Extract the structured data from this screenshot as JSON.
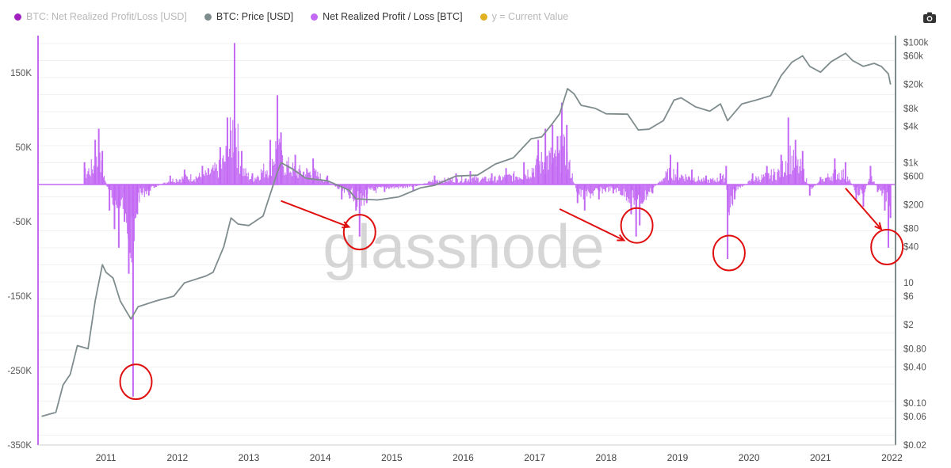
{
  "legend": [
    {
      "label": "BTC: Net Realized Profit/Loss [USD]",
      "color": "#a020c0",
      "state": "dim"
    },
    {
      "label": "BTC: Price [USD]",
      "color": "#7f8c8d",
      "state": "active"
    },
    {
      "label": "Net Realized Profit / Loss [BTC]",
      "color": "#c368f4",
      "state": "active"
    },
    {
      "label": "y = Current Value",
      "color": "#e0b020",
      "state": "dim"
    }
  ],
  "toolbar": {
    "camera_icon": "camera-icon"
  },
  "watermark": "glassnode",
  "chart_data": {
    "type": "line",
    "title": "",
    "x": [
      "2011",
      "2012",
      "2013",
      "2014",
      "2015",
      "2016",
      "2017",
      "2018",
      "2019",
      "2020",
      "2021",
      "2022"
    ],
    "y_left": {
      "ticks": [
        "150K",
        "50K",
        "-50K",
        "-150K",
        "-250K",
        "-350K"
      ],
      "range": [
        -350000,
        200000
      ]
    },
    "y_right": {
      "ticks": [
        "$100k",
        "$60k",
        "$20k",
        "$8k",
        "$4k",
        "$1k",
        "$600",
        "$200",
        "$80",
        "$40",
        "10",
        "$6",
        "$2",
        "$0.80",
        "$0.40",
        "$0.10",
        "$0.06",
        "$0.02"
      ],
      "scale": "log",
      "range": [
        0.02,
        130000
      ]
    },
    "grid": true,
    "series": [
      {
        "name": "BTC: Price [USD]",
        "color": "#7f8c8d",
        "axis": "right",
        "points": [
          [
            2010.6,
            0.06
          ],
          [
            2010.8,
            0.07
          ],
          [
            2010.9,
            0.2
          ],
          [
            2011.0,
            0.3
          ],
          [
            2011.1,
            0.9
          ],
          [
            2011.25,
            0.8
          ],
          [
            2011.35,
            5
          ],
          [
            2011.45,
            20
          ],
          [
            2011.5,
            15
          ],
          [
            2011.6,
            12
          ],
          [
            2011.7,
            5
          ],
          [
            2011.85,
            2.5
          ],
          [
            2011.95,
            4
          ],
          [
            2012.2,
            5
          ],
          [
            2012.45,
            6
          ],
          [
            2012.6,
            10
          ],
          [
            2012.9,
            13
          ],
          [
            2013.0,
            15
          ],
          [
            2013.15,
            40
          ],
          [
            2013.25,
            120
          ],
          [
            2013.35,
            95
          ],
          [
            2013.5,
            90
          ],
          [
            2013.7,
            130
          ],
          [
            2013.9,
            700
          ],
          [
            2013.95,
            1000
          ],
          [
            2014.1,
            800
          ],
          [
            2014.3,
            550
          ],
          [
            2014.6,
            500
          ],
          [
            2014.9,
            350
          ],
          [
            2015.0,
            250
          ],
          [
            2015.3,
            240
          ],
          [
            2015.6,
            270
          ],
          [
            2015.9,
            380
          ],
          [
            2016.1,
            420
          ],
          [
            2016.4,
            600
          ],
          [
            2016.7,
            620
          ],
          [
            2016.95,
            950
          ],
          [
            2017.2,
            1200
          ],
          [
            2017.45,
            2500
          ],
          [
            2017.6,
            2700
          ],
          [
            2017.75,
            4500
          ],
          [
            2017.85,
            6500
          ],
          [
            2017.96,
            17000
          ],
          [
            2018.05,
            14000
          ],
          [
            2018.15,
            9000
          ],
          [
            2018.35,
            8000
          ],
          [
            2018.5,
            6500
          ],
          [
            2018.8,
            6400
          ],
          [
            2018.95,
            3500
          ],
          [
            2019.1,
            3600
          ],
          [
            2019.3,
            5000
          ],
          [
            2019.45,
            11000
          ],
          [
            2019.55,
            12000
          ],
          [
            2019.75,
            8500
          ],
          [
            2019.95,
            7200
          ],
          [
            2020.1,
            9500
          ],
          [
            2020.2,
            5000
          ],
          [
            2020.4,
            9500
          ],
          [
            2020.6,
            11000
          ],
          [
            2020.8,
            13000
          ],
          [
            2020.95,
            28000
          ],
          [
            2021.1,
            47000
          ],
          [
            2021.25,
            60000
          ],
          [
            2021.35,
            40000
          ],
          [
            2021.5,
            32000
          ],
          [
            2021.65,
            48000
          ],
          [
            2021.85,
            66000
          ],
          [
            2021.95,
            50000
          ],
          [
            2022.1,
            40000
          ],
          [
            2022.25,
            45000
          ],
          [
            2022.35,
            40000
          ],
          [
            2022.45,
            30000
          ],
          [
            2022.48,
            20000
          ]
        ]
      },
      {
        "name": "Net Realized Profit / Loss [BTC]",
        "color": "#c368f4",
        "axis": "left",
        "bars": [
          [
            2011.2,
            30000
          ],
          [
            2011.35,
            60000
          ],
          [
            2011.4,
            75000
          ],
          [
            2011.45,
            45000
          ],
          [
            2011.55,
            -35000
          ],
          [
            2011.62,
            -60000
          ],
          [
            2011.68,
            -85000
          ],
          [
            2011.76,
            -50000
          ],
          [
            2011.82,
            -120000
          ],
          [
            2011.88,
            -285000
          ],
          [
            2011.94,
            -40000
          ],
          [
            2012.1,
            -15000
          ],
          [
            2012.4,
            12000
          ],
          [
            2012.6,
            20000
          ],
          [
            2012.85,
            25000
          ],
          [
            2013.1,
            50000
          ],
          [
            2013.2,
            90000
          ],
          [
            2013.3,
            190000
          ],
          [
            2013.4,
            45000
          ],
          [
            2013.55,
            15000
          ],
          [
            2013.8,
            60000
          ],
          [
            2013.9,
            120000
          ],
          [
            2013.95,
            70000
          ],
          [
            2014.15,
            40000
          ],
          [
            2014.4,
            35000
          ],
          [
            2014.6,
            12000
          ],
          [
            2014.8,
            -20000
          ],
          [
            2015.0,
            -35000
          ],
          [
            2015.05,
            -70000
          ],
          [
            2015.15,
            -25000
          ],
          [
            2015.4,
            -10000
          ],
          [
            2015.8,
            -8000
          ],
          [
            2016.1,
            12000
          ],
          [
            2016.4,
            15000
          ],
          [
            2016.6,
            18000
          ],
          [
            2016.9,
            15000
          ],
          [
            2017.1,
            22000
          ],
          [
            2017.35,
            30000
          ],
          [
            2017.55,
            60000
          ],
          [
            2017.65,
            75000
          ],
          [
            2017.75,
            80000
          ],
          [
            2017.82,
            65000
          ],
          [
            2017.88,
            110000
          ],
          [
            2017.95,
            80000
          ],
          [
            2018.1,
            -25000
          ],
          [
            2018.2,
            -35000
          ],
          [
            2018.4,
            -20000
          ],
          [
            2018.6,
            -12000
          ],
          [
            2018.85,
            -40000
          ],
          [
            2018.92,
            -70000
          ],
          [
            2018.97,
            -55000
          ],
          [
            2019.15,
            -12000
          ],
          [
            2019.4,
            40000
          ],
          [
            2019.5,
            30000
          ],
          [
            2019.7,
            20000
          ],
          [
            2019.9,
            12000
          ],
          [
            2020.1,
            15000
          ],
          [
            2020.18,
            25000
          ],
          [
            2020.2,
            -100000
          ],
          [
            2020.3,
            -20000
          ],
          [
            2020.55,
            15000
          ],
          [
            2020.75,
            25000
          ],
          [
            2020.95,
            40000
          ],
          [
            2021.05,
            90000
          ],
          [
            2021.15,
            60000
          ],
          [
            2021.25,
            45000
          ],
          [
            2021.35,
            -15000
          ],
          [
            2021.5,
            10000
          ],
          [
            2021.7,
            35000
          ],
          [
            2021.85,
            30000
          ],
          [
            2022.0,
            -20000
          ],
          [
            2022.1,
            -30000
          ],
          [
            2022.2,
            25000
          ],
          [
            2022.3,
            -10000
          ],
          [
            2022.4,
            -35000
          ],
          [
            2022.45,
            -85000
          ],
          [
            2022.48,
            -45000
          ]
        ]
      }
    ],
    "annotations": [
      {
        "type": "ellipse",
        "color": "#e01010",
        "x": 2011.92,
        "y": -265000
      },
      {
        "type": "ellipse",
        "color": "#e01010",
        "x": 2015.05,
        "y": -64000
      },
      {
        "type": "ellipse",
        "color": "#e01010",
        "x": 2018.93,
        "y": -55000
      },
      {
        "type": "ellipse",
        "color": "#e01010",
        "x": 2020.22,
        "y": -92000
      },
      {
        "type": "ellipse",
        "color": "#e01010",
        "x": 2022.43,
        "y": -84000
      },
      {
        "type": "arrow",
        "color": "#e01010",
        "from": [
          2013.95,
          -22000
        ],
        "to": [
          2014.9,
          -57000
        ]
      },
      {
        "type": "arrow",
        "color": "#e01010",
        "from": [
          2017.85,
          -33000
        ],
        "to": [
          2018.75,
          -75000
        ]
      },
      {
        "type": "arrow",
        "color": "#e01010",
        "from": [
          2021.85,
          -5000
        ],
        "to": [
          2022.35,
          -60000
        ]
      }
    ]
  }
}
